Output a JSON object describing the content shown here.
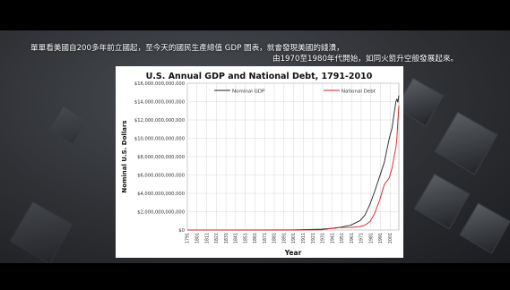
{
  "caption": {
    "line1": "單單看美國自200多年前立國起，至今天的國民生產總值 GDP 圖表，就會發現美國的錢潰，",
    "line2": "由1970至1980年代開始，如同火箭升空般發展起來。"
  },
  "colors": {
    "gdp": "#222222",
    "debt": "#d42020",
    "grid": "#d8d8d8",
    "plot_border": "#999999"
  },
  "chart_data": {
    "type": "line",
    "title": "U.S. Annual GDP and National Debt, 1791-2010",
    "xlabel": "Year",
    "ylabel": "Nominal U.S. Dollars",
    "legend_position": "top",
    "grid": true,
    "xlim": [
      1791,
      2010
    ],
    "ylim": [
      0,
      16000000000000
    ],
    "y_ticks": [
      "$0",
      "$2,000,000,000,000",
      "$4,000,000,000,000",
      "$6,000,000,000,000",
      "$8,000,000,000,000",
      "$10,000,000,000,000",
      "$12,000,000,000,000",
      "$14,000,000,000,000",
      "$16,000,000,000,000"
    ],
    "x_ticks": [
      "1791",
      "1801",
      "1811",
      "1821",
      "1831",
      "1841",
      "1851",
      "1861",
      "1871",
      "1881",
      "1891",
      "1901",
      "1911",
      "1921",
      "1931",
      "1941",
      "1951",
      "1961",
      "1971",
      "1981",
      "1991",
      "2001",
      "2011"
    ],
    "series": [
      {
        "name": "Nominal GDP",
        "color": "#222222",
        "points": [
          [
            1791,
            0
          ],
          [
            1900,
            20000000000
          ],
          [
            1930,
            90000000000
          ],
          [
            1945,
            220000000000
          ],
          [
            1960,
            520000000000
          ],
          [
            1970,
            1040000000000
          ],
          [
            1975,
            1640000000000
          ],
          [
            1980,
            2790000000000
          ],
          [
            1985,
            4220000000000
          ],
          [
            1990,
            5800000000000
          ],
          [
            1995,
            7410000000000
          ],
          [
            2000,
            9950000000000
          ],
          [
            2003,
            11140000000000
          ],
          [
            2005,
            12640000000000
          ],
          [
            2007,
            14030000000000
          ],
          [
            2008,
            14290000000000
          ],
          [
            2009,
            13940000000000
          ],
          [
            2010,
            14660000000000
          ]
        ]
      },
      {
        "name": "National Debt",
        "color": "#d42020",
        "points": [
          [
            1791,
            0
          ],
          [
            1900,
            1300000000
          ],
          [
            1930,
            16000000000
          ],
          [
            1945,
            260000000000
          ],
          [
            1960,
            290000000000
          ],
          [
            1970,
            370000000000
          ],
          [
            1975,
            540000000000
          ],
          [
            1980,
            910000000000
          ],
          [
            1985,
            1820000000000
          ],
          [
            1990,
            3230000000000
          ],
          [
            1995,
            4970000000000
          ],
          [
            2000,
            5670000000000
          ],
          [
            2003,
            6780000000000
          ],
          [
            2005,
            7930000000000
          ],
          [
            2007,
            9010000000000
          ],
          [
            2008,
            10020000000000
          ],
          [
            2009,
            11910000000000
          ],
          [
            2010,
            13560000000000
          ]
        ]
      }
    ]
  }
}
